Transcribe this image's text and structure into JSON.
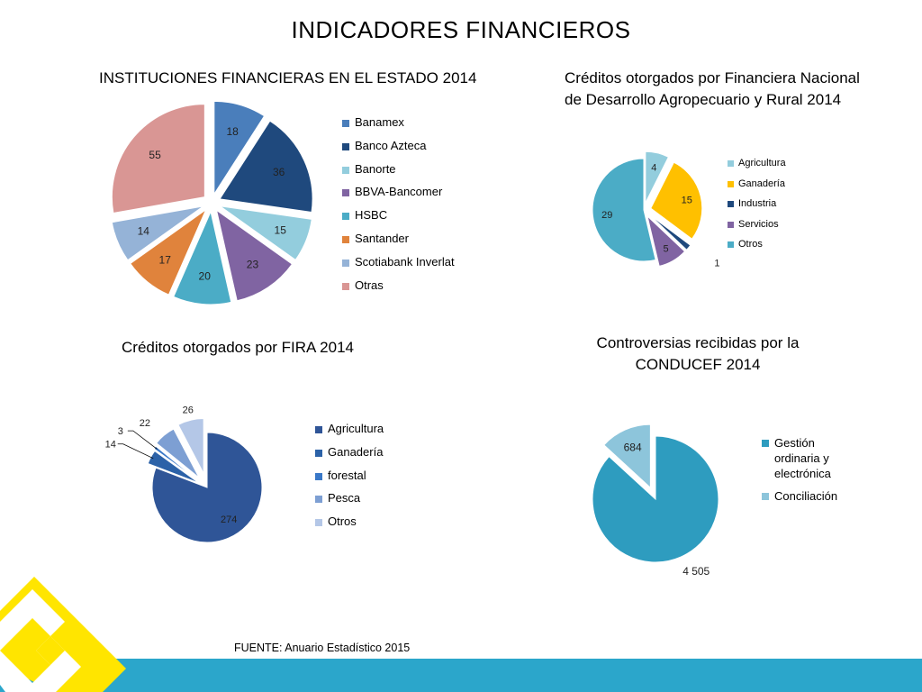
{
  "title": "INDICADORES FINANCIEROS",
  "source": "FUENTE: Anuario Estadístico 2015",
  "chart_data": [
    {
      "type": "pie",
      "title": "INSTITUCIONES FINANCIERAS EN EL ESTADO 2014",
      "categories": [
        "Banamex",
        "Banco Azteca",
        "Banorte",
        "BBVA-Bancomer",
        "HSBC",
        "Santander",
        "Scotiabank Inverlat",
        "Otras"
      ],
      "values": [
        18,
        36,
        15,
        23,
        20,
        17,
        14,
        55
      ],
      "colors": [
        "#4a7ebb",
        "#1f497d",
        "#93cddd",
        "#8064a2",
        "#4bacc6",
        "#e0833c",
        "#95b3d7",
        "#d99694"
      ],
      "legend": "right"
    },
    {
      "type": "pie",
      "title": "Créditos otorgados por Financiera Nacional de Desarrollo Agropecuario y Rural 2014",
      "categories": [
        "Agricultura",
        "Ganadería",
        "Industria",
        "Servicios",
        "Otros"
      ],
      "values": [
        4,
        15,
        1,
        5,
        29
      ],
      "colors": [
        "#93cddd",
        "#ffc000",
        "#1f497d",
        "#8064a2",
        "#4bacc6"
      ],
      "legend": "right"
    },
    {
      "type": "pie",
      "title": "Créditos otorgados por FIRA 2014",
      "categories": [
        "Agricultura",
        "Ganadería",
        "forestal",
        "Pesca",
        "Otros"
      ],
      "values": [
        274,
        14,
        3,
        22,
        26
      ],
      "colors": [
        "#2f5597",
        "#2c62a8",
        "#3a78c8",
        "#7d9fd3",
        "#b4c7e7"
      ],
      "legend": "right"
    },
    {
      "type": "pie",
      "title": "Controversias recibidas por la CONDUCEF 2014",
      "categories": [
        "Gestión ordinaria  y electrónica",
        "Conciliación"
      ],
      "values": [
        4505,
        684
      ],
      "value_labels": [
        "4 505",
        "684"
      ],
      "colors": [
        "#2e9cbf",
        "#8dc5db"
      ],
      "legend": "right"
    }
  ]
}
